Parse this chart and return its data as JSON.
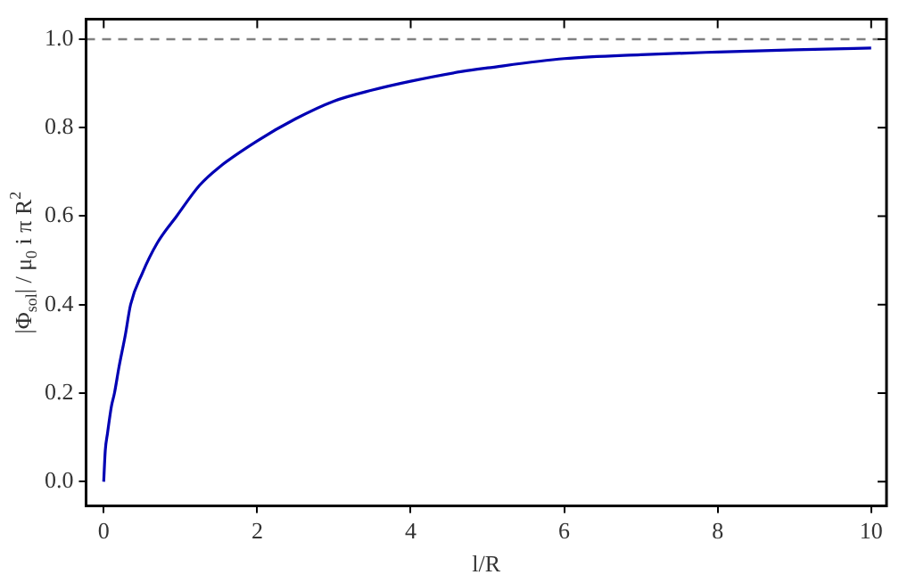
{
  "chart_data": {
    "type": "line",
    "xlabel": "l/R",
    "ylabel": "|Φ$_{sol}$| / μ$_{0}$ i π R$^{2}$",
    "series": [
      {
        "color": "#0000b4",
        "x": [
          0,
          0.02,
          0.05,
          0.1,
          0.14,
          0.2,
          0.28,
          0.35,
          0.5,
          0.7,
          0.95,
          1.25,
          1.5,
          2,
          2.5,
          3,
          3.5,
          4,
          4.67,
          5,
          6,
          7,
          8,
          9,
          10
        ],
        "values": [
          0,
          0.07,
          0.11,
          0.17,
          0.2,
          0.26,
          0.33,
          0.4,
          0.47,
          0.54,
          0.6,
          0.67,
          0.71,
          0.77,
          0.82,
          0.86,
          0.885,
          0.905,
          0.927,
          0.935,
          0.956,
          0.965,
          0.971,
          0.976,
          0.98
        ]
      }
    ],
    "xlim": [
      -0.23,
      10.2
    ],
    "xticks": [
      0,
      2,
      4,
      6,
      8,
      10
    ],
    "ylim": [
      -0.055,
      1.045
    ],
    "yticks": [
      {
        "value": 0,
        "label": "0.0"
      },
      {
        "value": 0.2,
        "label": "0.2"
      },
      {
        "value": 0.4,
        "label": "0.4"
      },
      {
        "value": 0.6,
        "label": "0.6"
      },
      {
        "value": 0.8,
        "label": "0.8"
      },
      {
        "value": 1,
        "label": "1.0"
      }
    ],
    "ref_lines": [
      {
        "axis": "y",
        "value": 1,
        "color": "#808080",
        "line_style": "dashed"
      }
    ],
    "grid": false,
    "legend": false,
    "marker": "none",
    "line_style": "solid"
  }
}
